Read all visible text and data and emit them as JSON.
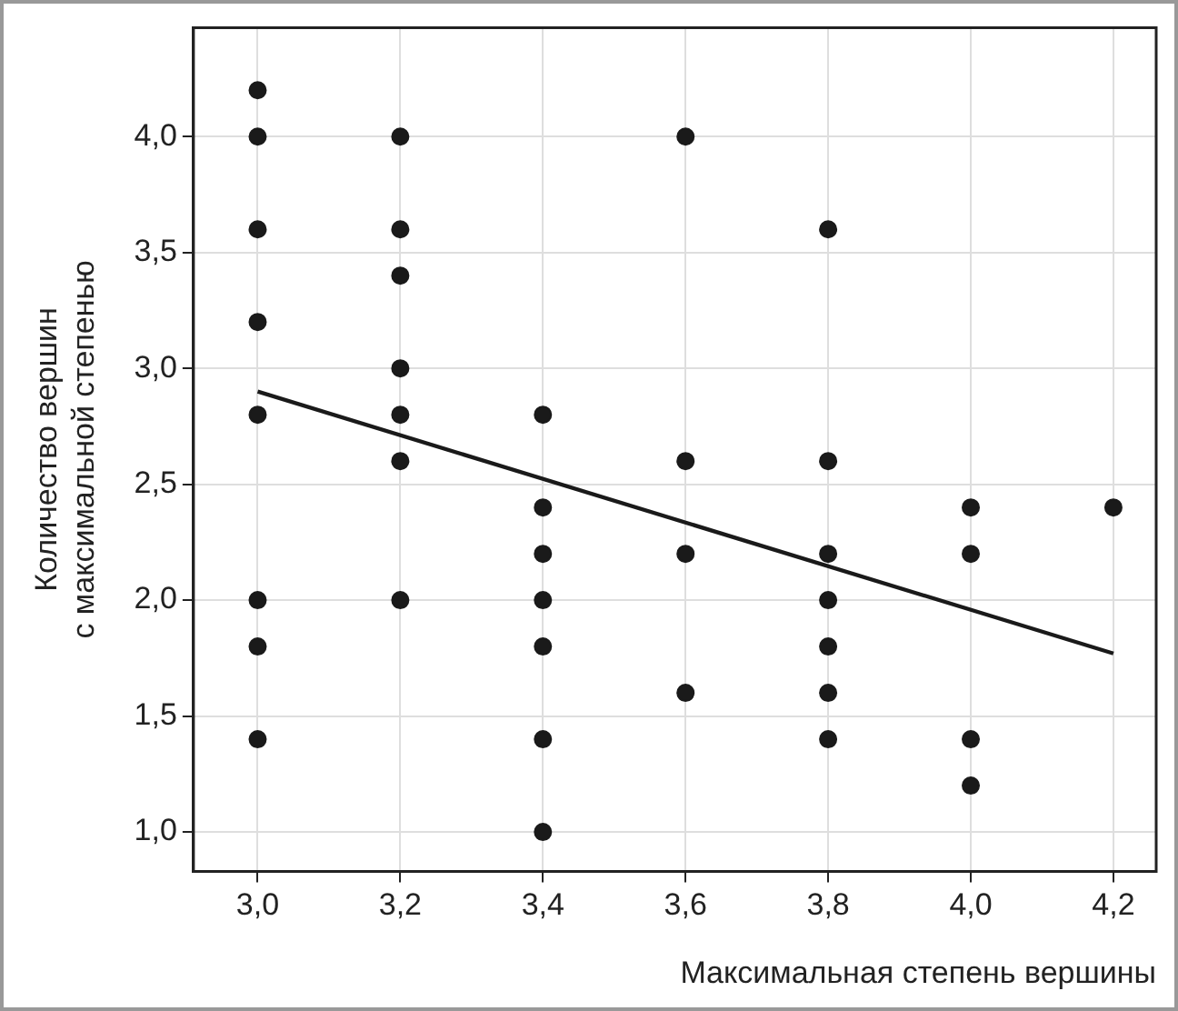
{
  "chart_data": {
    "type": "scatter",
    "xlabel": "Максимальная степень вершины",
    "ylabel": "Количество вершин\nс максимальной степенью",
    "xlim": [
      2.91,
      4.26
    ],
    "ylim": [
      0.83,
      4.47
    ],
    "xticks": [
      {
        "value": 3.0,
        "label": "3,0"
      },
      {
        "value": 3.2,
        "label": "3,2"
      },
      {
        "value": 3.4,
        "label": "3,4"
      },
      {
        "value": 3.6,
        "label": "3,6"
      },
      {
        "value": 3.8,
        "label": "3,8"
      },
      {
        "value": 4.0,
        "label": "4,0"
      },
      {
        "value": 4.2,
        "label": "4,2"
      }
    ],
    "yticks": [
      {
        "value": 1.0,
        "label": "1,0"
      },
      {
        "value": 1.5,
        "label": "1,5"
      },
      {
        "value": 2.0,
        "label": "2,0"
      },
      {
        "value": 2.5,
        "label": "2,5"
      },
      {
        "value": 3.0,
        "label": "3,0"
      },
      {
        "value": 3.5,
        "label": "3,5"
      },
      {
        "value": 4.0,
        "label": "4,0"
      }
    ],
    "grid": true,
    "marker": "circle",
    "series": [
      {
        "type": "scatter",
        "color": "#1a1a1a",
        "x": [
          3.0,
          3.0,
          3.0,
          3.0,
          3.0,
          3.0,
          3.0,
          3.0,
          3.2,
          3.2,
          3.2,
          3.2,
          3.2,
          3.2,
          3.2,
          3.4,
          3.4,
          3.4,
          3.4,
          3.4,
          3.4,
          3.4,
          3.6,
          3.6,
          3.6,
          3.6,
          3.8,
          3.8,
          3.8,
          3.8,
          3.8,
          3.8,
          3.8,
          4.0,
          4.0,
          4.0,
          4.0,
          4.2
        ],
        "values": [
          4.2,
          4.0,
          3.6,
          3.2,
          2.8,
          2.0,
          1.8,
          1.4,
          4.0,
          3.6,
          3.4,
          3.0,
          2.8,
          2.6,
          2.0,
          2.8,
          2.4,
          2.2,
          2.0,
          1.8,
          1.4,
          1.0,
          4.0,
          2.6,
          2.2,
          1.6,
          3.6,
          2.6,
          2.2,
          2.0,
          1.8,
          1.6,
          1.4,
          2.4,
          2.2,
          1.4,
          1.2,
          2.4
        ]
      },
      {
        "type": "line",
        "color": "#1a1a1a",
        "x": [
          3.0,
          4.2
        ],
        "values": [
          2.9,
          1.77
        ],
        "marker": "none",
        "line_style": "solid"
      }
    ]
  }
}
